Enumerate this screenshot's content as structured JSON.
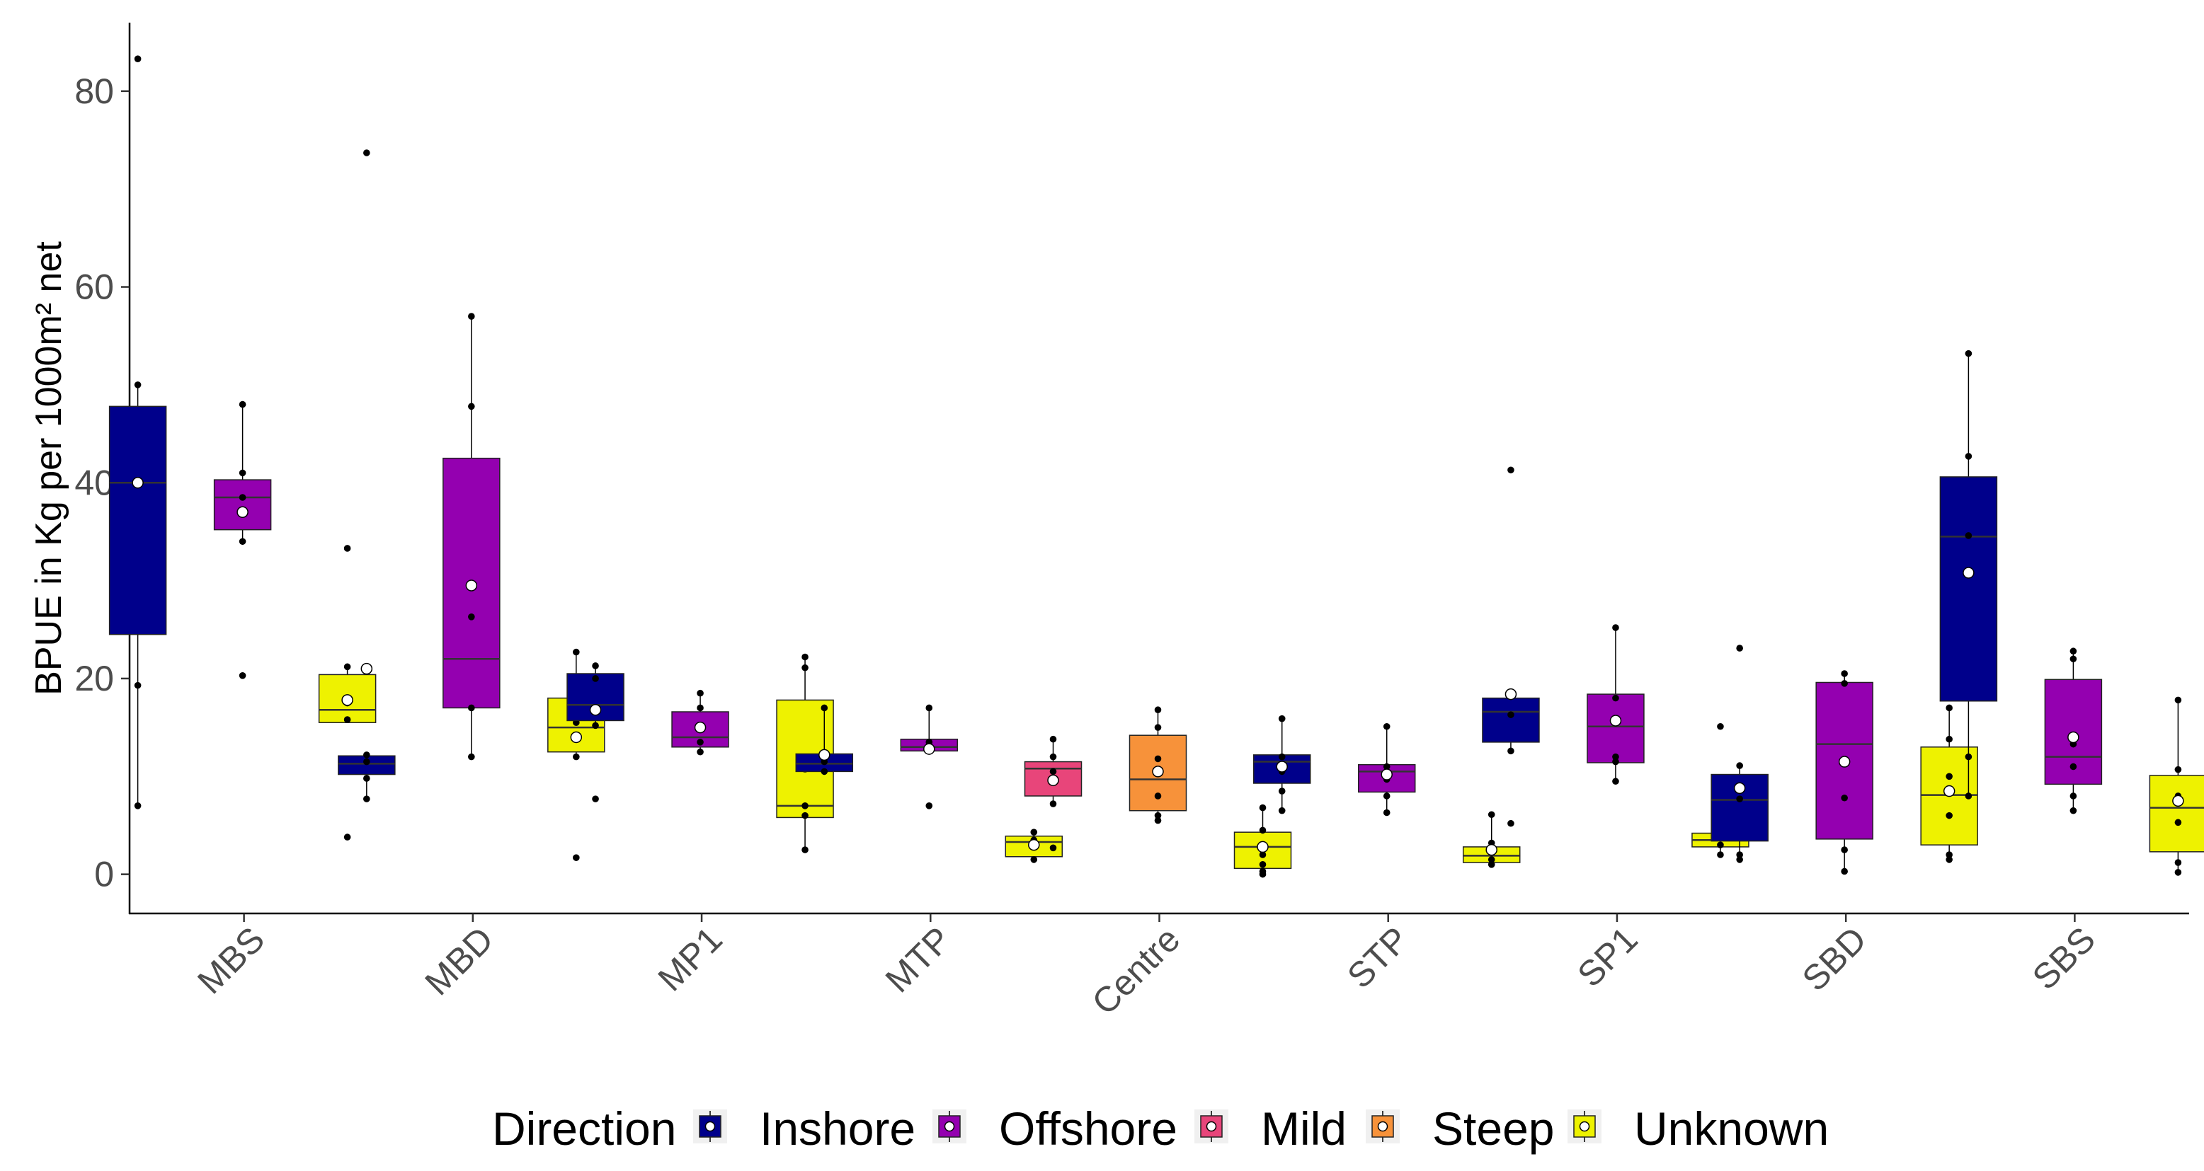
{
  "chart_data": {
    "type": "box",
    "ylabel": "BPUE in Kg per 1000m² net",
    "ylim": [
      -4,
      87
    ],
    "y_ticks": [
      0,
      20,
      40,
      60,
      80
    ],
    "grid": false,
    "legend": {
      "position": "bottom",
      "title": "Direction",
      "entries": [
        "Inshore",
        "Offshore",
        "Mild",
        "Steep",
        "Unknown"
      ]
    },
    "categories": [
      "MBS",
      "MBD",
      "MP1",
      "MTP",
      "Centre",
      "STP",
      "SP1",
      "SBD",
      "SBS"
    ],
    "colors": {
      "Inshore": "#00008B",
      "Offshore": "#9400B0",
      "Mild": "#E8457A",
      "Steep": "#F7923A",
      "Unknown": "#EEF200"
    },
    "boxes": [
      {
        "category": "MBS",
        "group": "Inshore",
        "lower": 7,
        "q1": 24.5,
        "median": 40,
        "q3": 47.8,
        "upper": 50,
        "mean": 40,
        "points": [
          83.3,
          50,
          19.3,
          7,
          40
        ]
      },
      {
        "category": "MBS",
        "group": "Offshore",
        "lower": 34,
        "q1": 35.2,
        "median": 38.5,
        "q3": 40.3,
        "upper": 48,
        "mean": 37,
        "points": [
          20.3,
          48,
          41,
          38.5,
          34
        ]
      },
      {
        "category": "MBS",
        "group": "Unknown",
        "lower": 15.5,
        "q1": 15.5,
        "median": 16.8,
        "q3": 20.4,
        "upper": 21.2,
        "mean": 17.8,
        "points": [
          33.3,
          3.8,
          21.2,
          17.5,
          15.8
        ]
      },
      {
        "category": "MBD",
        "group": "Inshore",
        "lower": 7.7,
        "q1": 10.2,
        "median": 11.3,
        "q3": 12.1,
        "upper": 12.2,
        "mean": 21,
        "points": [
          73.7,
          7.7,
          9.8,
          11.5,
          12.2
        ]
      },
      {
        "category": "MBD",
        "group": "Offshore",
        "lower": 12,
        "q1": 17,
        "median": 22,
        "q3": 42.5,
        "upper": 57,
        "mean": 29.5,
        "points": [
          57,
          47.8,
          26.3,
          17,
          12
        ]
      },
      {
        "category": "MBD",
        "group": "Unknown",
        "lower": 11.8,
        "q1": 12.5,
        "median": 15,
        "q3": 18,
        "upper": 22.7,
        "mean": 14,
        "points": [
          1.7,
          22.7,
          18.6,
          15.5,
          12
        ]
      },
      {
        "category": "MP1",
        "group": "Inshore",
        "lower": 15.2,
        "q1": 15.7,
        "median": 17.3,
        "q3": 20.5,
        "upper": 21.3,
        "mean": 16.8,
        "points": [
          7.7,
          21.3,
          20,
          15.2
        ]
      },
      {
        "category": "MP1",
        "group": "Offshore",
        "lower": 12.5,
        "q1": 13,
        "median": 14,
        "q3": 16.6,
        "upper": 18.5,
        "mean": 15,
        "points": [
          18.5,
          17,
          13.5,
          12.5
        ]
      },
      {
        "category": "MP1",
        "group": "Unknown",
        "lower": 2.5,
        "q1": 5.8,
        "median": 7,
        "q3": 17.8,
        "upper": 22.2,
        "mean": 11,
        "points": [
          22.2,
          21.1,
          7,
          6,
          2.5
        ]
      },
      {
        "category": "MTP",
        "group": "Inshore",
        "lower": 10.5,
        "q1": 10.5,
        "median": 11.3,
        "q3": 12.3,
        "upper": 17,
        "mean": 12.2,
        "points": [
          17,
          11.5,
          10.5
        ]
      },
      {
        "category": "MTP",
        "group": "Offshore",
        "lower": 12.6,
        "q1": 12.6,
        "median": 13,
        "q3": 13.8,
        "upper": 17,
        "mean": 12.8,
        "points": [
          17,
          7,
          13.5
        ]
      },
      {
        "category": "MTP",
        "group": "Unknown",
        "lower": 1.5,
        "q1": 1.8,
        "median": 3.3,
        "q3": 3.9,
        "upper": 4.3,
        "mean": 3,
        "points": [
          4.3,
          3.5,
          1.5
        ]
      },
      {
        "category": "Centre",
        "group": "Mild",
        "lower": 7.2,
        "q1": 8,
        "median": 10.8,
        "q3": 11.5,
        "upper": 13.8,
        "mean": 9.6,
        "points": [
          2.7,
          13.8,
          12,
          10.5,
          7.2
        ]
      },
      {
        "category": "Centre",
        "group": "Steep",
        "lower": 5.5,
        "q1": 6.5,
        "median": 9.7,
        "q3": 14.2,
        "upper": 16.8,
        "mean": 10.5,
        "points": [
          16.8,
          15,
          11.8,
          8,
          6,
          5.5
        ]
      },
      {
        "category": "Centre",
        "group": "Unknown",
        "lower": 0,
        "q1": 0.6,
        "median": 2.8,
        "q3": 4.3,
        "upper": 6.8,
        "mean": 2.8,
        "points": [
          6.8,
          4.5,
          2,
          1,
          0.3,
          0
        ]
      },
      {
        "category": "STP",
        "group": "Inshore",
        "lower": 6.5,
        "q1": 9.3,
        "median": 11.5,
        "q3": 12.2,
        "upper": 15.9,
        "mean": 11,
        "points": [
          15.9,
          12,
          10.5,
          8.5,
          6.5
        ]
      },
      {
        "category": "STP",
        "group": "Offshore",
        "lower": 6.3,
        "q1": 8.4,
        "median": 10.5,
        "q3": 11.2,
        "upper": 15.1,
        "mean": 10.2,
        "points": [
          15.1,
          11,
          9.7,
          8,
          6.3
        ]
      },
      {
        "category": "STP",
        "group": "Unknown",
        "lower": 1,
        "q1": 1.2,
        "median": 1.9,
        "q3": 2.8,
        "upper": 6.1,
        "mean": 2.5,
        "points": [
          6.1,
          3.2,
          1.5,
          1
        ]
      },
      {
        "category": "SP1",
        "group": "Inshore",
        "lower": 12.6,
        "q1": 13.5,
        "median": 16.6,
        "q3": 18,
        "upper": 18.3,
        "mean": 18.4,
        "points": [
          41.3,
          5.2,
          18.3,
          16.3,
          12.6
        ]
      },
      {
        "category": "SP1",
        "group": "Offshore",
        "lower": 9.5,
        "q1": 11.4,
        "median": 15.1,
        "q3": 18.4,
        "upper": 25.2,
        "mean": 15.7,
        "points": [
          25.2,
          18,
          12,
          11.5,
          9.5
        ]
      },
      {
        "category": "SP1",
        "group": "Unknown",
        "lower": 2,
        "q1": 2.8,
        "median": 3.5,
        "q3": 4.2,
        "upper": 4.2,
        "mean": 5.1,
        "points": [
          15.1,
          4,
          3,
          2
        ]
      },
      {
        "category": "SBD",
        "group": "Inshore",
        "lower": 1.5,
        "q1": 3.4,
        "median": 7.6,
        "q3": 10.2,
        "upper": 11.1,
        "mean": 8.8,
        "points": [
          23.1,
          11.1,
          7.7,
          2,
          1.5
        ]
      },
      {
        "category": "SBD",
        "group": "Offshore",
        "lower": 0.3,
        "q1": 3.6,
        "median": 13.3,
        "q3": 19.6,
        "upper": 20.5,
        "mean": 11.5,
        "points": [
          20.5,
          19.5,
          7.8,
          2.5,
          0.3
        ]
      },
      {
        "category": "SBD",
        "group": "Unknown",
        "lower": 1.5,
        "q1": 3,
        "median": 8.1,
        "q3": 13,
        "upper": 17,
        "mean": 8.5,
        "points": [
          17,
          13.8,
          10,
          6,
          2,
          1.5
        ]
      },
      {
        "category": "SBS",
        "group": "Inshore",
        "lower": 8,
        "q1": 17.7,
        "median": 34.5,
        "q3": 40.6,
        "upper": 53.2,
        "mean": 30.8,
        "points": [
          53.2,
          42.7,
          34.6,
          12,
          8
        ]
      },
      {
        "category": "SBS",
        "group": "Offshore",
        "lower": 6.5,
        "q1": 9.2,
        "median": 12,
        "q3": 19.9,
        "upper": 22.8,
        "mean": 14,
        "points": [
          22.8,
          22,
          13.3,
          11,
          8,
          6.5
        ]
      },
      {
        "category": "SBS",
        "group": "Unknown",
        "lower": 0.2,
        "q1": 2.3,
        "median": 6.8,
        "q3": 10.1,
        "upper": 17.8,
        "mean": 7.5,
        "points": [
          17.8,
          10.7,
          8,
          5.3,
          1.2,
          0.2
        ]
      }
    ]
  }
}
